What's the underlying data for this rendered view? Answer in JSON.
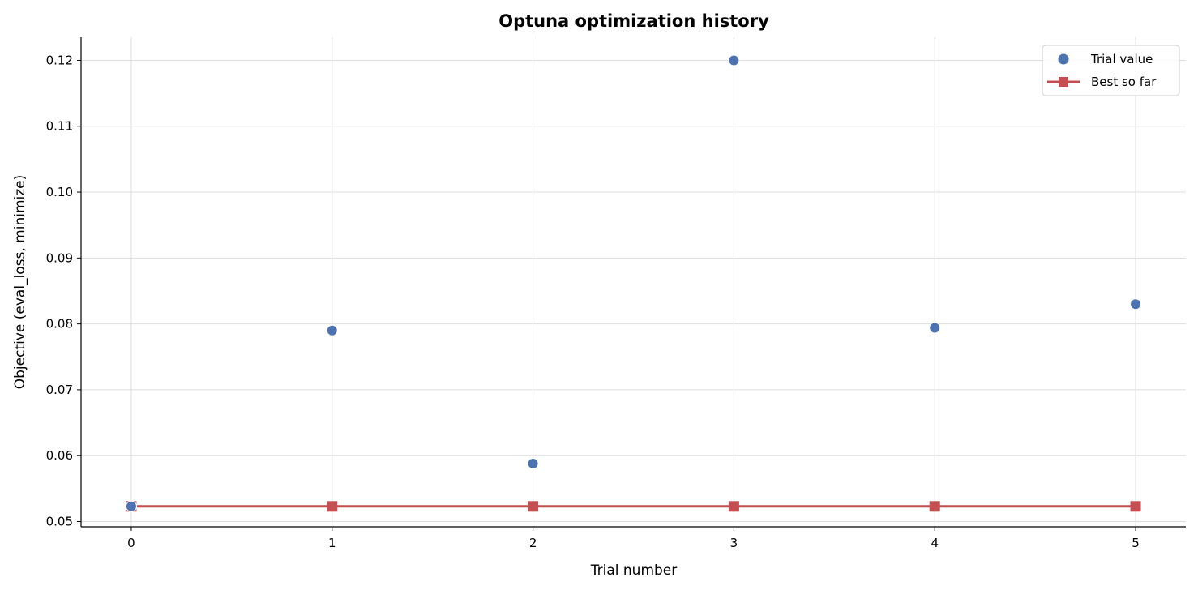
{
  "chart_data": {
    "type": "scatter",
    "title": "Optuna optimization history",
    "xlabel": "Trial number",
    "ylabel": "Objective (eval_loss, minimize)",
    "xlim": [
      -0.25,
      5.25
    ],
    "ylim": [
      0.0492,
      0.1235
    ],
    "xticks": [
      0,
      1,
      2,
      3,
      4,
      5
    ],
    "xtick_labels": [
      "0",
      "1",
      "2",
      "3",
      "4",
      "5"
    ],
    "yticks": [
      0.05,
      0.06,
      0.07,
      0.08,
      0.09,
      0.1,
      0.11,
      0.12
    ],
    "ytick_labels": [
      "0.05",
      "0.06",
      "0.07",
      "0.08",
      "0.09",
      "0.10",
      "0.11",
      "0.12"
    ],
    "grid": true,
    "legend_position": "top-right",
    "series": [
      {
        "name": "Trial value",
        "kind": "scatter",
        "color": "#4c72b0",
        "x": [
          0,
          1,
          2,
          3,
          4,
          5
        ],
        "y": [
          0.0523,
          0.079,
          0.0588,
          0.12,
          0.0794,
          0.083
        ]
      },
      {
        "name": "Best so far",
        "kind": "line-square",
        "color": "#c44e52",
        "x": [
          0,
          1,
          2,
          3,
          4,
          5
        ],
        "y": [
          0.0523,
          0.0523,
          0.0523,
          0.0523,
          0.0523,
          0.0523
        ]
      }
    ]
  }
}
